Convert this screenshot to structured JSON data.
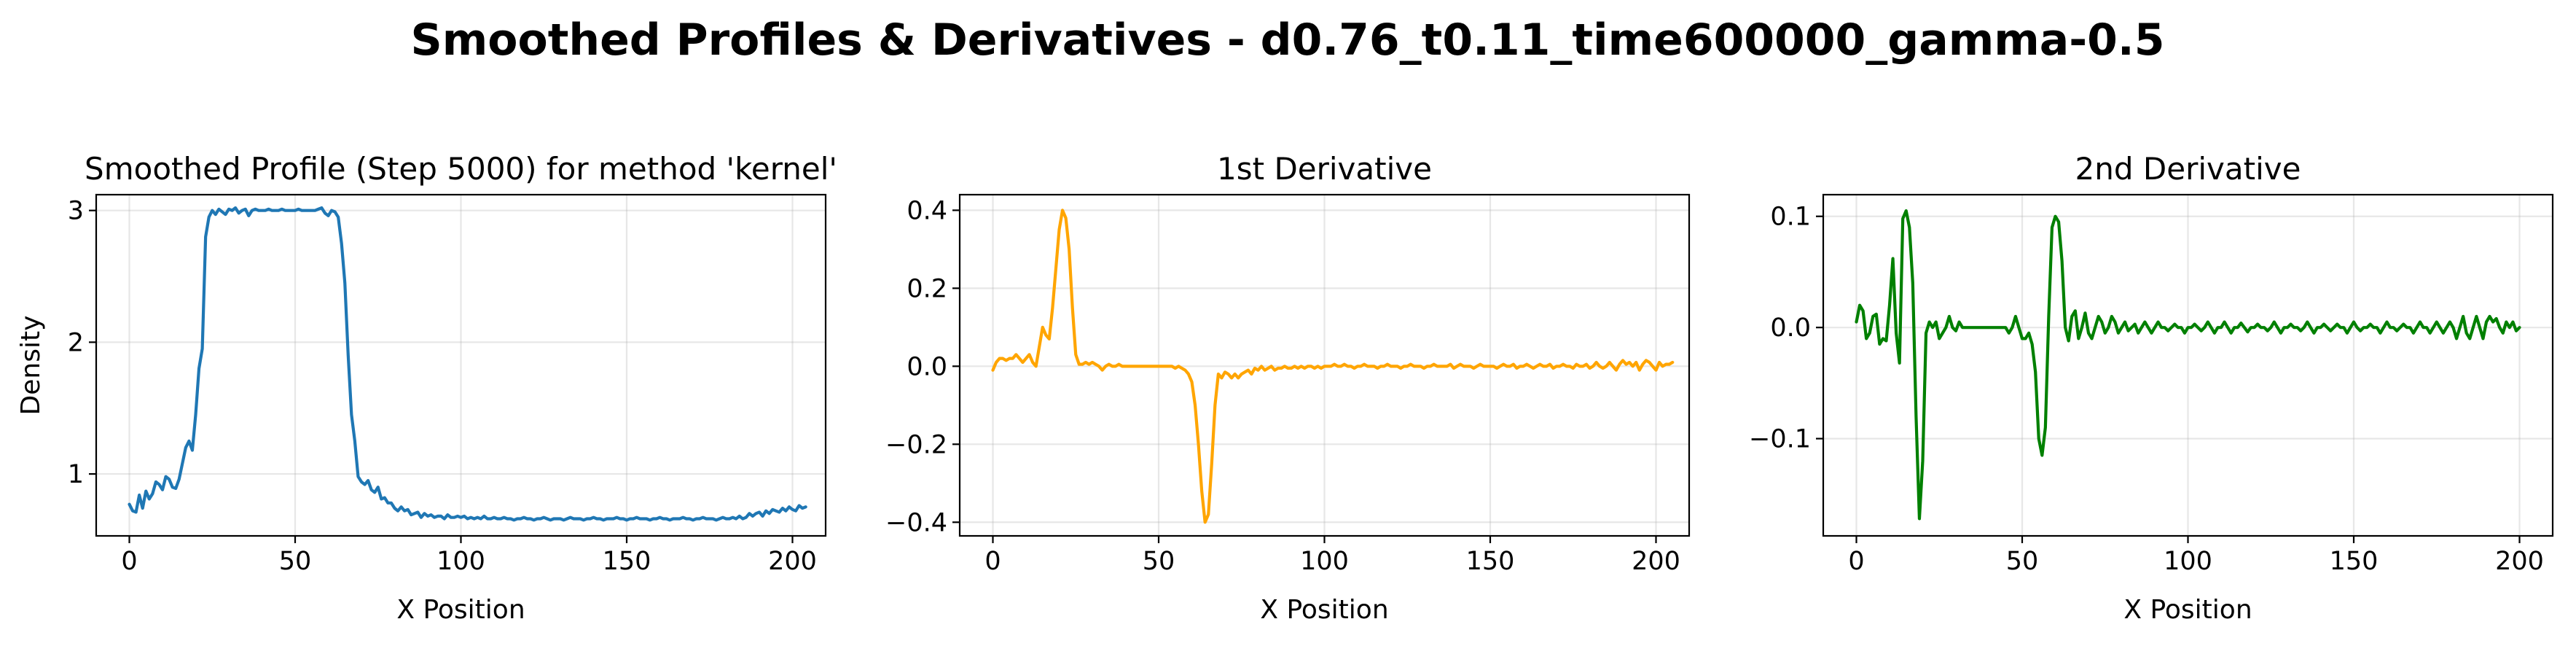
{
  "figure": {
    "suptitle": "Smoothed Profiles & Derivatives - d0.76_t0.11_time600000_gamma-0.5"
  },
  "chart_data": [
    {
      "type": "line",
      "title": "Smoothed Profile (Step 5000) for method 'kernel'",
      "xlabel": "X Position",
      "ylabel": "Density",
      "xlim": [
        -10,
        210
      ],
      "ylim": [
        0.53,
        3.12
      ],
      "xticks": [
        0,
        50,
        100,
        150,
        200
      ],
      "xtick_labels": [
        "0",
        "50",
        "100",
        "150",
        "200"
      ],
      "yticks": [
        1,
        2,
        3
      ],
      "ytick_labels": [
        "1",
        "2",
        "3"
      ],
      "grid": true,
      "color": "#1f77b4",
      "x_start": 0,
      "x_step": 1,
      "values": [
        0.77,
        0.72,
        0.71,
        0.84,
        0.74,
        0.87,
        0.81,
        0.85,
        0.94,
        0.92,
        0.88,
        0.98,
        0.96,
        0.9,
        0.89,
        0.96,
        1.08,
        1.2,
        1.25,
        1.18,
        1.45,
        1.8,
        1.95,
        2.8,
        2.95,
        3.0,
        2.97,
        3.01,
        2.99,
        2.97,
        3.01,
        3.0,
        3.02,
        2.98,
        3.0,
        3.01,
        2.96,
        3.0,
        3.01,
        3.0,
        3.0,
        3.0,
        3.01,
        3.0,
        3.0,
        3.0,
        3.01,
        3.0,
        3.0,
        3.0,
        3.0,
        3.01,
        3.0,
        3.0,
        3.0,
        3.0,
        3.0,
        3.01,
        3.02,
        2.98,
        2.96,
        3.0,
        2.99,
        2.95,
        2.75,
        2.45,
        1.9,
        1.45,
        1.25,
        0.98,
        0.94,
        0.92,
        0.95,
        0.88,
        0.86,
        0.9,
        0.81,
        0.82,
        0.78,
        0.78,
        0.74,
        0.72,
        0.75,
        0.72,
        0.73,
        0.69,
        0.7,
        0.71,
        0.67,
        0.7,
        0.68,
        0.69,
        0.67,
        0.68,
        0.68,
        0.66,
        0.69,
        0.67,
        0.67,
        0.68,
        0.67,
        0.68,
        0.66,
        0.67,
        0.66,
        0.67,
        0.66,
        0.68,
        0.66,
        0.66,
        0.67,
        0.66,
        0.66,
        0.67,
        0.66,
        0.66,
        0.65,
        0.66,
        0.66,
        0.67,
        0.66,
        0.66,
        0.65,
        0.66,
        0.66,
        0.67,
        0.66,
        0.65,
        0.66,
        0.66,
        0.66,
        0.65,
        0.66,
        0.67,
        0.66,
        0.66,
        0.66,
        0.65,
        0.66,
        0.66,
        0.67,
        0.66,
        0.66,
        0.65,
        0.66,
        0.66,
        0.66,
        0.67,
        0.66,
        0.66,
        0.65,
        0.66,
        0.66,
        0.67,
        0.66,
        0.66,
        0.66,
        0.65,
        0.66,
        0.66,
        0.67,
        0.66,
        0.66,
        0.65,
        0.66,
        0.66,
        0.66,
        0.67,
        0.66,
        0.66,
        0.65,
        0.66,
        0.66,
        0.67,
        0.66,
        0.66,
        0.66,
        0.65,
        0.66,
        0.67,
        0.66,
        0.66,
        0.67,
        0.66,
        0.68,
        0.66,
        0.67,
        0.7,
        0.68,
        0.7,
        0.71,
        0.68,
        0.72,
        0.7,
        0.73,
        0.72,
        0.71,
        0.74,
        0.72,
        0.75,
        0.73,
        0.72,
        0.76,
        0.74,
        0.75
      ]
    },
    {
      "type": "line",
      "title": "1st Derivative",
      "xlabel": "X Position",
      "ylabel": "",
      "xlim": [
        -10,
        210
      ],
      "ylim": [
        -0.435,
        0.44
      ],
      "xticks": [
        0,
        50,
        100,
        150,
        200
      ],
      "xtick_labels": [
        "0",
        "50",
        "100",
        "150",
        "200"
      ],
      "yticks": [
        -0.4,
        -0.2,
        0.0,
        0.2,
        0.4
      ],
      "ytick_labels": [
        "−0.4",
        "−0.2",
        "0.0",
        "0.2",
        "0.4"
      ],
      "grid": true,
      "color": "#ffa500",
      "x_start": 0,
      "x_step": 1,
      "values": [
        -0.01,
        0.01,
        0.02,
        0.02,
        0.015,
        0.02,
        0.02,
        0.03,
        0.02,
        0.01,
        0.02,
        0.03,
        0.01,
        0.0,
        0.05,
        0.1,
        0.08,
        0.07,
        0.15,
        0.25,
        0.35,
        0.4,
        0.38,
        0.3,
        0.15,
        0.03,
        0.005,
        0.005,
        0.01,
        0.005,
        0.01,
        0.005,
        0.0,
        -0.01,
        0.0,
        0.005,
        0.0,
        0.0,
        0.005,
        0.0,
        0.0,
        0.0,
        0.0,
        0.0,
        0.0,
        0.0,
        0.0,
        0.0,
        0.0,
        0.0,
        0.0,
        0.0,
        0.0,
        0.0,
        0.0,
        -0.005,
        0.0,
        -0.005,
        -0.01,
        -0.02,
        -0.04,
        -0.1,
        -0.2,
        -0.32,
        -0.4,
        -0.38,
        -0.25,
        -0.1,
        -0.02,
        -0.03,
        -0.015,
        -0.02,
        -0.03,
        -0.02,
        -0.03,
        -0.02,
        -0.015,
        -0.01,
        -0.02,
        -0.005,
        -0.01,
        0.0,
        -0.01,
        -0.005,
        0.0,
        -0.01,
        -0.005,
        -0.005,
        0.0,
        -0.005,
        -0.005,
        0.0,
        -0.005,
        0.0,
        -0.005,
        0.0,
        0.0,
        -0.005,
        0.0,
        -0.005,
        0.0,
        0.0,
        0.0,
        0.005,
        0.0,
        0.0,
        0.005,
        0.0,
        0.0,
        -0.005,
        0.0,
        0.0,
        0.005,
        0.0,
        0.0,
        0.0,
        -0.005,
        0.0,
        0.0,
        0.005,
        0.0,
        0.0,
        0.0,
        -0.005,
        0.0,
        0.0,
        0.005,
        0.0,
        0.0,
        0.0,
        -0.005,
        0.0,
        0.0,
        0.005,
        0.0,
        0.0,
        0.0,
        0.0,
        0.005,
        -0.005,
        0.0,
        0.005,
        0.0,
        0.0,
        0.0,
        -0.005,
        0.0,
        0.005,
        0.0,
        0.0,
        0.0,
        0.0,
        -0.005,
        0.0,
        0.005,
        0.0,
        0.0,
        0.005,
        -0.005,
        0.0,
        0.0,
        0.005,
        0.0,
        -0.005,
        0.0,
        0.005,
        0.0,
        0.0,
        0.005,
        -0.005,
        0.0,
        0.0,
        0.005,
        0.0,
        0.0,
        -0.005,
        0.005,
        0.0,
        0.0,
        0.005,
        -0.005,
        0.0,
        0.01,
        0.0,
        -0.005,
        0.0,
        0.01,
        0.0,
        -0.01,
        0.005,
        0.015,
        0.005,
        0.01,
        0.0,
        0.01,
        -0.01,
        0.005,
        0.015,
        0.01,
        0.0,
        -0.01,
        0.01,
        0.0,
        0.005,
        0.005,
        0.01
      ]
    },
    {
      "type": "line",
      "title": "2nd Derivative",
      "xlabel": "X Position",
      "ylabel": "",
      "xlim": [
        -10,
        210
      ],
      "ylim": [
        -0.1875,
        0.1195
      ],
      "xticks": [
        0,
        50,
        100,
        150,
        200
      ],
      "xtick_labels": [
        "0",
        "50",
        "100",
        "150",
        "200"
      ],
      "yticks": [
        -0.1,
        0.0,
        0.1
      ],
      "ytick_labels": [
        "−0.1",
        "0.0",
        "0.1"
      ],
      "grid": true,
      "color": "#008000",
      "x_start": 0,
      "x_step": 1,
      "values": [
        0.005,
        0.02,
        0.015,
        -0.01,
        -0.005,
        0.01,
        0.012,
        -0.015,
        -0.01,
        -0.012,
        0.02,
        0.062,
        -0.005,
        -0.032,
        0.098,
        0.105,
        0.09,
        0.04,
        -0.08,
        -0.172,
        -0.12,
        -0.005,
        0.005,
        0.0,
        0.005,
        -0.01,
        -0.005,
        0.0,
        0.01,
        0.0,
        -0.003,
        0.005,
        0.0,
        0.0,
        0.0,
        0.0,
        0.0,
        0.0,
        0.0,
        0.0,
        0.0,
        0.0,
        0.0,
        0.0,
        0.0,
        0.0,
        -0.005,
        0.0,
        0.01,
        0.0,
        -0.01,
        -0.01,
        -0.005,
        -0.015,
        -0.04,
        -0.1,
        -0.115,
        -0.09,
        0.01,
        0.09,
        0.1,
        0.095,
        0.06,
        0.0,
        -0.012,
        0.01,
        0.015,
        -0.01,
        0.0,
        0.013,
        -0.005,
        -0.01,
        0.0,
        0.01,
        0.005,
        -0.005,
        0.0,
        0.01,
        0.005,
        -0.005,
        0.0,
        0.005,
        -0.003,
        0.0,
        0.003,
        -0.005,
        0.0,
        0.005,
        0.0,
        -0.005,
        0.0,
        0.005,
        0.0,
        0.0,
        -0.003,
        0.0,
        0.003,
        0.0,
        0.0,
        -0.005,
        0.0,
        0.0,
        0.003,
        0.0,
        -0.003,
        0.0,
        0.005,
        0.0,
        -0.005,
        0.0,
        0.0,
        0.005,
        0.0,
        -0.005,
        0.0,
        0.0,
        0.004,
        0.0,
        -0.004,
        0.0,
        0.0,
        0.003,
        0.0,
        0.0,
        -0.003,
        0.0,
        0.005,
        0.0,
        -0.005,
        0.0,
        0.0,
        0.003,
        0.0,
        0.0,
        -0.003,
        0.0,
        0.005,
        0.0,
        -0.005,
        0.0,
        0.0,
        0.003,
        0.0,
        -0.003,
        0.0,
        0.003,
        0.0,
        0.0,
        -0.005,
        0.0,
        0.005,
        0.0,
        -0.003,
        0.0,
        0.0,
        0.003,
        0.0,
        0.0,
        -0.005,
        0.0,
        0.005,
        0.0,
        0.0,
        -0.003,
        0.0,
        0.003,
        0.0,
        0.0,
        -0.005,
        0.0,
        0.005,
        0.0,
        0.0,
        -0.005,
        0.0,
        0.005,
        0.0,
        -0.005,
        0.0,
        0.005,
        0.0,
        -0.01,
        0.0,
        0.01,
        -0.005,
        -0.01,
        0.0,
        0.01,
        0.0,
        -0.01,
        0.005,
        0.01,
        0.005,
        0.008,
        0.0,
        -0.005,
        0.005,
        0.0,
        0.005,
        -0.003,
        0.0
      ]
    }
  ]
}
